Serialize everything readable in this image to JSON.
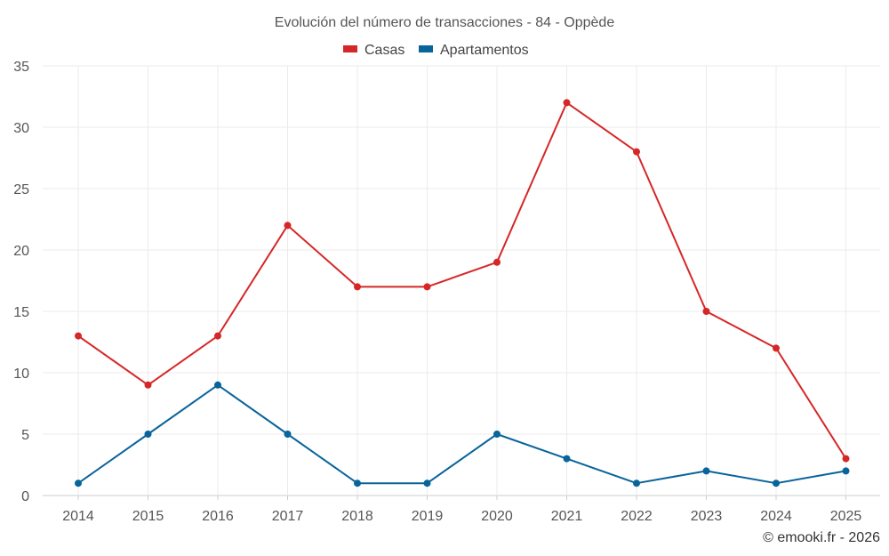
{
  "chart_data": {
    "type": "line",
    "title": "Evolución del número de transacciones - 84 - Oppède",
    "categories": [
      "2014",
      "2015",
      "2016",
      "2017",
      "2018",
      "2019",
      "2020",
      "2021",
      "2022",
      "2023",
      "2024",
      "2025"
    ],
    "series": [
      {
        "name": "Casas",
        "color": "#d62728",
        "values": [
          13,
          9,
          13,
          22,
          17,
          17,
          19,
          32,
          28,
          15,
          12,
          3
        ]
      },
      {
        "name": "Apartamentos",
        "color": "#08649a",
        "values": [
          1,
          5,
          9,
          5,
          1,
          1,
          5,
          3,
          1,
          2,
          1,
          2
        ]
      }
    ],
    "ylim": [
      0,
      35
    ],
    "yticks": [
      0,
      5,
      10,
      15,
      20,
      25,
      30,
      35
    ],
    "grid": true,
    "legend_position": "top-center",
    "xlabel": "",
    "ylabel": ""
  },
  "credit": "© emooki.fr - 2026"
}
